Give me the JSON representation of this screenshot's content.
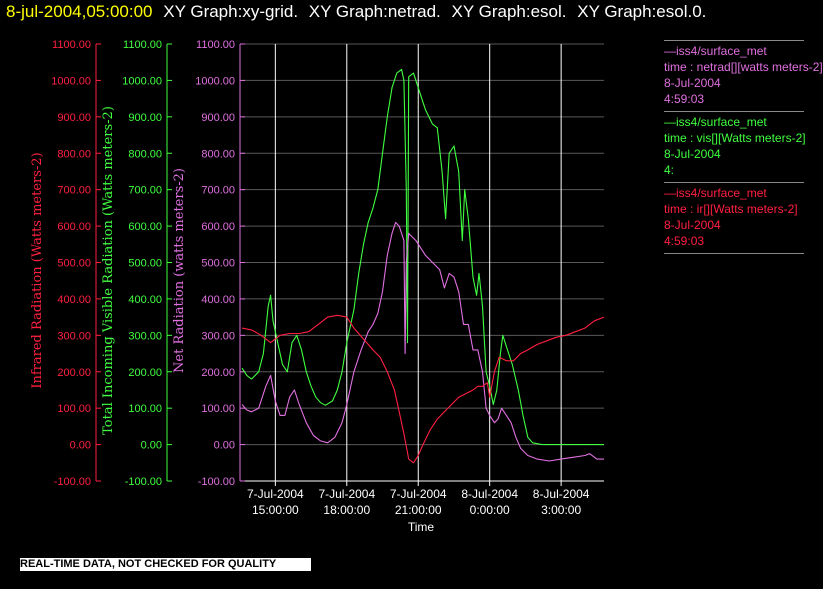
{
  "header": {
    "timestamp": "8-jul-2004,05:00:00",
    "graph_titles": [
      "XY Graph:xy-grid.",
      "XY Graph:netrad.",
      "XY Graph:esol.",
      "XY Graph:esol.0."
    ]
  },
  "colors": {
    "background": "#000000",
    "timestamp": "#ffff00",
    "infrared": "#ff2040",
    "visible": "#40ff40",
    "netrad": "#e070e0",
    "grid": "#ffffff"
  },
  "footer": {
    "disclaimer": "REAL-TIME DATA, NOT CHECKED FOR QUALITY"
  },
  "legend": [
    {
      "source": "—iss4/surface_met",
      "variable": "time : netrad[][watts meters-2]",
      "date": "8-Jul-2004",
      "time": "4:59:03",
      "color": "#e070e0"
    },
    {
      "source": "—iss4/surface_met",
      "variable": "time : vis[][Watts meters-2]",
      "date": "8-Jul-2004",
      "time": "4:",
      "color": "#40ff40"
    },
    {
      "source": "—iss4/surface_met",
      "variable": "time : ir[][Watts meters-2]",
      "date": "8-Jul-2004",
      "time": "4:59:03",
      "color": "#ff2040"
    }
  ],
  "chart_data": {
    "type": "line",
    "xlabel": "Time",
    "x_tick_labels": [
      {
        "date": "7-Jul-2004",
        "time": "15:00:00",
        "hour": 15
      },
      {
        "date": "7-Jul-2004",
        "time": "18:00:00",
        "hour": 18
      },
      {
        "date": "7-Jul-2004",
        "time": "21:00:00",
        "hour": 21
      },
      {
        "date": "8-Jul-2004",
        "time": "0:00:00",
        "hour": 24
      },
      {
        "date": "8-Jul-2004",
        "time": "3:00:00",
        "hour": 27
      }
    ],
    "xlim_hours": [
      13.6,
      28.8
    ],
    "ylim": [
      -100,
      1100
    ],
    "y_ticks": [
      "1100.00",
      "1000.00",
      "900.00",
      "800.00",
      "700.00",
      "600.00",
      "500.00",
      "400.00",
      "300.00",
      "200.00",
      "100.00",
      "0.00",
      "-100.00"
    ],
    "axes": [
      {
        "id": "infrared",
        "ylabel": "Infrared Radiation (Watts meters-2)",
        "color": "#ff2040"
      },
      {
        "id": "visible",
        "ylabel": "Total Incoming Visible Radiation (Watts meters-2)",
        "color": "#40ff40"
      },
      {
        "id": "netrad",
        "ylabel": "Net Radiation (watts meters-2)",
        "color": "#e070e0"
      }
    ],
    "series": [
      {
        "id": "visible",
        "color": "#40ff40",
        "points": [
          [
            13.6,
            210
          ],
          [
            13.8,
            190
          ],
          [
            14.0,
            180
          ],
          [
            14.3,
            200
          ],
          [
            14.5,
            250
          ],
          [
            14.7,
            380
          ],
          [
            14.8,
            410
          ],
          [
            14.9,
            340
          ],
          [
            15.1,
            280
          ],
          [
            15.3,
            220
          ],
          [
            15.5,
            200
          ],
          [
            15.7,
            280
          ],
          [
            15.9,
            300
          ],
          [
            16.1,
            260
          ],
          [
            16.3,
            200
          ],
          [
            16.5,
            160
          ],
          [
            16.7,
            130
          ],
          [
            16.9,
            115
          ],
          [
            17.1,
            108
          ],
          [
            17.4,
            120
          ],
          [
            17.6,
            150
          ],
          [
            17.8,
            200
          ],
          [
            18.0,
            280
          ],
          [
            18.3,
            370
          ],
          [
            18.5,
            470
          ],
          [
            18.7,
            550
          ],
          [
            18.9,
            610
          ],
          [
            19.1,
            650
          ],
          [
            19.3,
            700
          ],
          [
            19.5,
            800
          ],
          [
            19.7,
            900
          ],
          [
            19.9,
            980
          ],
          [
            20.1,
            1020
          ],
          [
            20.3,
            1030
          ],
          [
            20.4,
            1000
          ],
          [
            20.5,
            700
          ],
          [
            20.55,
            280
          ],
          [
            20.6,
            1010
          ],
          [
            20.8,
            1020
          ],
          [
            21.0,
            980
          ],
          [
            21.3,
            920
          ],
          [
            21.6,
            880
          ],
          [
            21.8,
            870
          ],
          [
            22.0,
            750
          ],
          [
            22.15,
            620
          ],
          [
            22.3,
            800
          ],
          [
            22.5,
            820
          ],
          [
            22.7,
            750
          ],
          [
            22.85,
            560
          ],
          [
            22.95,
            700
          ],
          [
            23.1,
            620
          ],
          [
            23.3,
            460
          ],
          [
            23.45,
            410
          ],
          [
            23.55,
            470
          ],
          [
            23.7,
            380
          ],
          [
            23.85,
            200
          ],
          [
            24.0,
            160
          ],
          [
            24.15,
            110
          ],
          [
            24.3,
            150
          ],
          [
            24.45,
            250
          ],
          [
            24.55,
            300
          ],
          [
            24.75,
            260
          ],
          [
            24.95,
            220
          ],
          [
            25.2,
            150
          ],
          [
            25.4,
            80
          ],
          [
            25.6,
            20
          ],
          [
            25.8,
            5
          ],
          [
            26.2,
            0
          ],
          [
            27.0,
            0
          ],
          [
            27.5,
            0
          ],
          [
            28.0,
            0
          ],
          [
            28.5,
            0
          ],
          [
            28.8,
            0
          ]
        ]
      },
      {
        "id": "netrad",
        "color": "#e070e0",
        "points": [
          [
            13.6,
            110
          ],
          [
            13.8,
            95
          ],
          [
            14.0,
            90
          ],
          [
            14.3,
            100
          ],
          [
            14.6,
            160
          ],
          [
            14.8,
            190
          ],
          [
            15.0,
            120
          ],
          [
            15.2,
            80
          ],
          [
            15.4,
            80
          ],
          [
            15.6,
            130
          ],
          [
            15.8,
            150
          ],
          [
            16.0,
            110
          ],
          [
            16.3,
            60
          ],
          [
            16.6,
            25
          ],
          [
            16.9,
            10
          ],
          [
            17.2,
            5
          ],
          [
            17.5,
            20
          ],
          [
            17.8,
            60
          ],
          [
            18.0,
            110
          ],
          [
            18.3,
            200
          ],
          [
            18.6,
            260
          ],
          [
            18.9,
            310
          ],
          [
            19.1,
            330
          ],
          [
            19.3,
            360
          ],
          [
            19.5,
            420
          ],
          [
            19.7,
            520
          ],
          [
            19.9,
            580
          ],
          [
            20.05,
            610
          ],
          [
            20.2,
            600
          ],
          [
            20.3,
            580
          ],
          [
            20.4,
            560
          ],
          [
            20.45,
            250
          ],
          [
            20.5,
            500
          ],
          [
            20.6,
            580
          ],
          [
            20.9,
            560
          ],
          [
            21.3,
            520
          ],
          [
            21.6,
            500
          ],
          [
            21.9,
            480
          ],
          [
            22.1,
            430
          ],
          [
            22.3,
            470
          ],
          [
            22.5,
            460
          ],
          [
            22.7,
            420
          ],
          [
            22.9,
            330
          ],
          [
            23.1,
            330
          ],
          [
            23.3,
            260
          ],
          [
            23.5,
            260
          ],
          [
            23.7,
            200
          ],
          [
            23.85,
            100
          ],
          [
            24.0,
            80
          ],
          [
            24.2,
            60
          ],
          [
            24.35,
            70
          ],
          [
            24.5,
            100
          ],
          [
            24.7,
            80
          ],
          [
            24.9,
            60
          ],
          [
            25.1,
            20
          ],
          [
            25.3,
            -10
          ],
          [
            25.6,
            -30
          ],
          [
            26.0,
            -40
          ],
          [
            26.5,
            -45
          ],
          [
            27.0,
            -40
          ],
          [
            27.5,
            -35
          ],
          [
            28.0,
            -30
          ],
          [
            28.2,
            -25
          ],
          [
            28.5,
            -40
          ],
          [
            28.8,
            -40
          ]
        ]
      },
      {
        "id": "infrared",
        "color": "#ff2040",
        "points": [
          [
            13.6,
            320
          ],
          [
            14.0,
            315
          ],
          [
            14.4,
            300
          ],
          [
            14.8,
            280
          ],
          [
            15.2,
            300
          ],
          [
            15.6,
            305
          ],
          [
            16.0,
            305
          ],
          [
            16.4,
            310
          ],
          [
            16.8,
            330
          ],
          [
            17.2,
            350
          ],
          [
            17.6,
            355
          ],
          [
            18.0,
            350
          ],
          [
            18.3,
            320
          ],
          [
            18.7,
            290
          ],
          [
            19.1,
            260
          ],
          [
            19.4,
            240
          ],
          [
            19.7,
            200
          ],
          [
            20.0,
            150
          ],
          [
            20.2,
            90
          ],
          [
            20.4,
            30
          ],
          [
            20.6,
            -40
          ],
          [
            20.8,
            -50
          ],
          [
            21.0,
            -30
          ],
          [
            21.2,
            0
          ],
          [
            21.5,
            40
          ],
          [
            21.8,
            70
          ],
          [
            22.1,
            90
          ],
          [
            22.4,
            110
          ],
          [
            22.7,
            130
          ],
          [
            23.0,
            140
          ],
          [
            23.3,
            150
          ],
          [
            23.5,
            160
          ],
          [
            23.7,
            160
          ],
          [
            23.9,
            170
          ],
          [
            24.0,
            130
          ],
          [
            24.2,
            200
          ],
          [
            24.4,
            240
          ],
          [
            24.7,
            230
          ],
          [
            25.0,
            230
          ],
          [
            25.3,
            250
          ],
          [
            25.6,
            260
          ],
          [
            26.0,
            275
          ],
          [
            26.4,
            285
          ],
          [
            26.8,
            295
          ],
          [
            27.2,
            300
          ],
          [
            27.6,
            310
          ],
          [
            28.0,
            320
          ],
          [
            28.4,
            340
          ],
          [
            28.8,
            350
          ]
        ]
      }
    ]
  }
}
